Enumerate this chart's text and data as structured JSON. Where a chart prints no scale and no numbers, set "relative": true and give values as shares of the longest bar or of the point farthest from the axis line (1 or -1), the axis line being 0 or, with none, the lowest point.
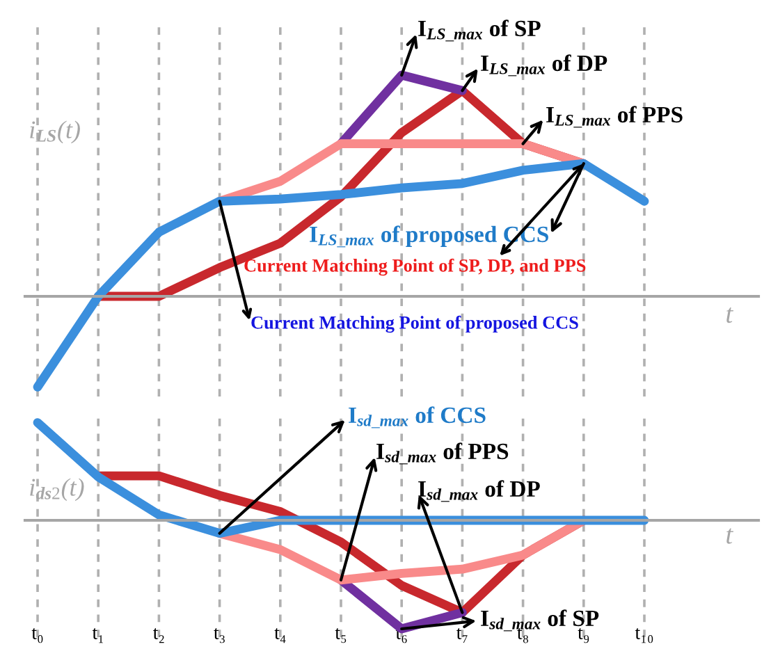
{
  "chart_data": [
    {
      "type": "line",
      "relative": true,
      "grid": "x",
      "tick_labels": false,
      "ylabel": "i$_{LS}$(t)",
      "xlabel": "t",
      "categories": [
        "t₀",
        "t₁",
        "t₂",
        "t₃",
        "t₄",
        "t₅",
        "t₆",
        "t₇",
        "t₈",
        "t₉",
        "t₁₀"
      ],
      "series": [
        {
          "color": "#c8282d",
          "values": [
            null,
            0.0,
            0.0,
            0.13,
            0.24,
            0.45,
            0.74,
            0.93,
            0.69,
            0.6,
            null
          ]
        },
        {
          "color": "#7030a0",
          "values": [
            null,
            null,
            null,
            null,
            null,
            0.69,
            1.0,
            0.93,
            null,
            null,
            null
          ]
        },
        {
          "color": "#f98a8a",
          "values": [
            null,
            null,
            null,
            0.43,
            0.52,
            0.69,
            0.69,
            0.69,
            0.69,
            0.6,
            null
          ]
        },
        {
          "color": "#3b8fdd",
          "values": [
            -0.41,
            0.0,
            0.29,
            0.43,
            0.44,
            0.46,
            0.49,
            0.51,
            0.57,
            0.6,
            0.43
          ]
        }
      ],
      "annotations": [
        {
          "text": "I$_{LS_max}$ of SP",
          "x": "t₆",
          "y": 1.0
        },
        {
          "text": "I$_{LS_max}$ of DP",
          "x": "t₇",
          "y": 0.93
        },
        {
          "text": "I$_{LS_max}$ of PPS",
          "x": "t₈",
          "y": 0.69
        },
        {
          "text": "I$_{LS_max}$ of proposed CCS",
          "x": "t₉",
          "y": 0.6
        },
        {
          "text": "Current Matching Point of SP, DP, and PPS",
          "x": "t₉",
          "y": 0.6
        },
        {
          "text": "Current Matching Point of proposed CCS",
          "x": "t₃",
          "y": 0.43
        }
      ]
    },
    {
      "type": "line",
      "relative": true,
      "grid": "x",
      "tick_labels": "x",
      "ylabel": "i$_{ds2}$(t)",
      "xlabel": "t",
      "categories": [
        "t₀",
        "t₁",
        "t₂",
        "t₃",
        "t₄",
        "t₅",
        "t₆",
        "t₇",
        "t₈",
        "t₉",
        "t₁₀"
      ],
      "series": [
        {
          "color": "#c8282d",
          "values": [
            null,
            0.41,
            0.41,
            0.23,
            0.08,
            -0.2,
            -0.6,
            -0.85,
            -0.32,
            0.0,
            null
          ]
        },
        {
          "color": "#7030a0",
          "values": [
            null,
            null,
            null,
            null,
            null,
            -0.55,
            -1.0,
            -0.85,
            null,
            null,
            null
          ]
        },
        {
          "color": "#f98a8a",
          "values": [
            null,
            null,
            null,
            -0.12,
            -0.27,
            -0.55,
            -0.49,
            -0.45,
            -0.32,
            0.0,
            null
          ]
        },
        {
          "color": "#3b8fdd",
          "values": [
            0.9,
            0.4,
            0.05,
            -0.12,
            0.0,
            0.0,
            0.0,
            0.0,
            0.0,
            0.0,
            0.0
          ]
        }
      ],
      "annotations": [
        {
          "text": "I$_{sd_max}$ of CCS",
          "x": "t₃",
          "y": -0.12
        },
        {
          "text": "I$_{sd_max}$ of PPS",
          "x": "t₅",
          "y": -0.55
        },
        {
          "text": "I$_{sd_max}$ of DP",
          "x": "t₇",
          "y": -0.85
        },
        {
          "text": "I$_{sd_max}$ of SP",
          "x": "t₆",
          "y": -1.0
        }
      ]
    }
  ]
}
